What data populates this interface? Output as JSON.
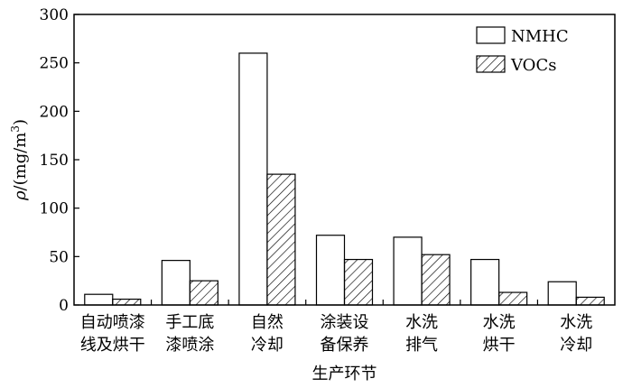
{
  "chart_data": {
    "type": "bar",
    "title": "",
    "xlabel": "生产环节",
    "ylabel_symbol": "ρ",
    "ylabel_unit": "/(mg/m",
    "ylabel_exponent": "3",
    "ylabel_close": ")",
    "ylim": [
      0,
      300
    ],
    "yticks": [
      0,
      50,
      100,
      150,
      200,
      250,
      300
    ],
    "categories": [
      [
        "自动喷漆",
        "线及烘干"
      ],
      [
        "手工底",
        "漆喷涂"
      ],
      [
        "自然",
        "冷却"
      ],
      [
        "涂装设",
        "备保养"
      ],
      [
        "水洗",
        "排气"
      ],
      [
        "水洗",
        "烘干"
      ],
      [
        "水洗",
        "冷却"
      ]
    ],
    "series": [
      {
        "name": "NMHC",
        "pattern": "open",
        "values": [
          11,
          46,
          260,
          72,
          70,
          47,
          24
        ]
      },
      {
        "name": "VOCs",
        "pattern": "hatched",
        "values": [
          6,
          25,
          135,
          47,
          52,
          13,
          8
        ]
      }
    ],
    "legend_position": "top-right",
    "grid": false
  }
}
